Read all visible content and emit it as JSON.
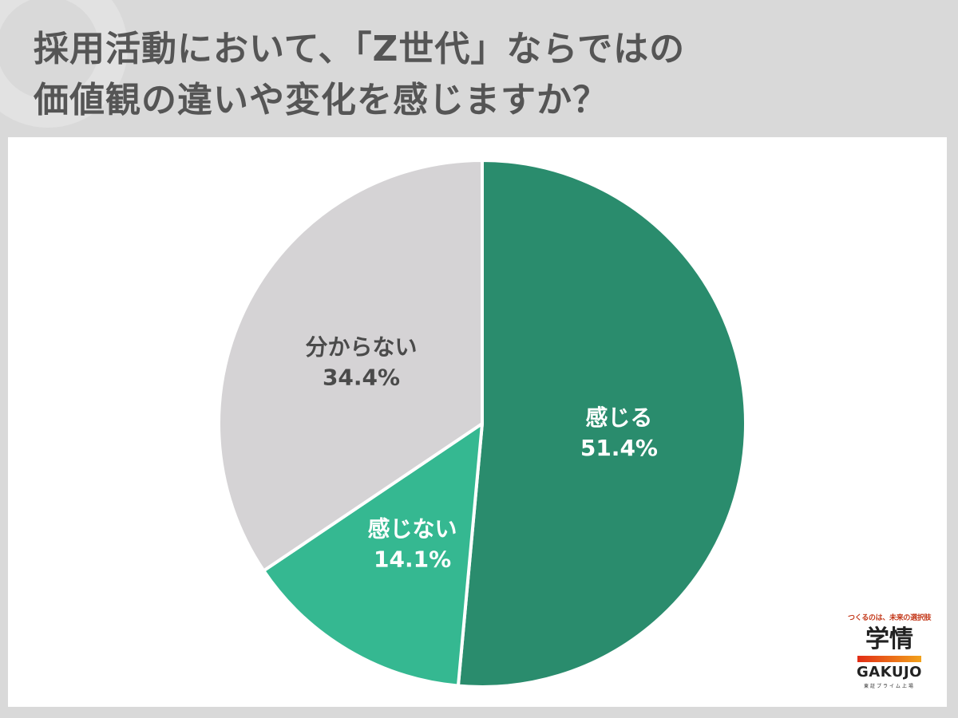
{
  "title": {
    "line1": "採用活動において、「Z世代」ならではの",
    "line2": "価値観の違いや変化を感じますか？"
  },
  "chart_data": {
    "type": "pie",
    "title": "採用活動において、「Z世代」ならではの価値観の違いや変化を感じますか？",
    "slices": [
      {
        "label": "感じる",
        "value": 51.4,
        "value_label": "51.4%",
        "color": "#2a8c6d"
      },
      {
        "label": "感じない",
        "value": 14.1,
        "value_label": "14.1%",
        "color": "#35b891"
      },
      {
        "label": "分からない",
        "value": 34.4,
        "value_label": "34.4%",
        "color": "#d5d3d5"
      }
    ],
    "start": "12 o'clock",
    "direction": "clockwise",
    "legend": "none"
  },
  "logo": {
    "tagline": "つくるのは、未来の選択肢",
    "name": "学情",
    "name_en": "GAKUJO",
    "sub": "東証プライム上場",
    "accent_from": "#e22d16",
    "accent_to": "#f2a21b"
  }
}
